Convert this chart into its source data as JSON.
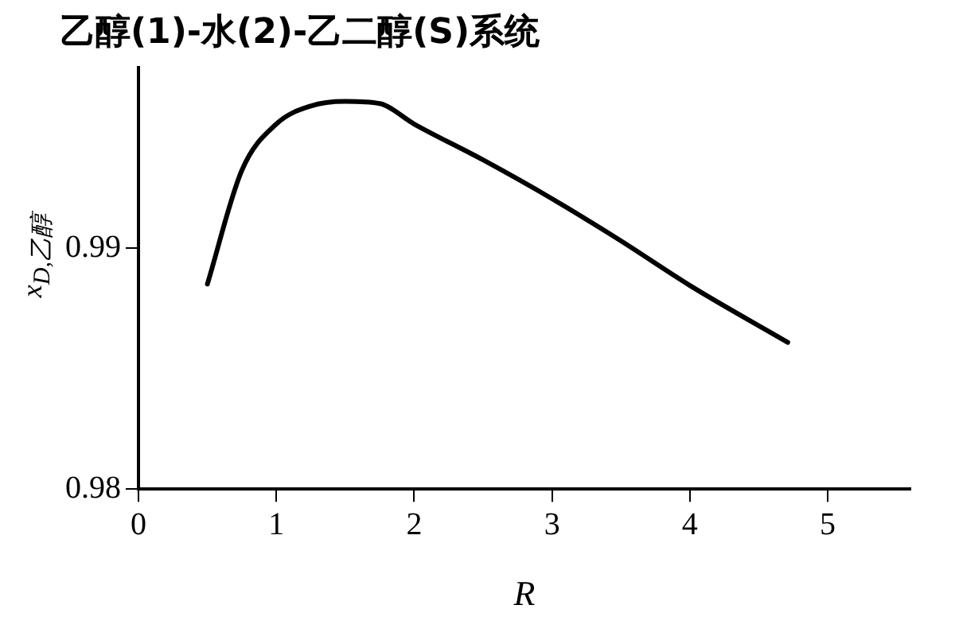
{
  "chart_data": {
    "type": "line",
    "title": "乙醇(1)-水(2)-乙二醇(S)系统",
    "xlabel": "R",
    "ylabel": "x$_{D,乙醇}$",
    "x": [
      0.5,
      0.75,
      1.0,
      1.25,
      1.5,
      1.75,
      2.0,
      2.5,
      3.0,
      3.5,
      4.0,
      4.71
    ],
    "series": [
      {
        "color": "#000000",
        "values": [
          0.98851,
          0.99323,
          0.99515,
          0.9959,
          0.99609,
          0.996,
          0.99515,
          0.99366,
          0.99205,
          0.9903,
          0.98845,
          0.98609
        ]
      }
    ],
    "xlim": [
      0,
      5.6
    ],
    "xticks": [
      0,
      1,
      2,
      3,
      4,
      5
    ],
    "ylim": [
      0.98,
      0.9975
    ],
    "yticks": [
      0.98,
      0.99
    ],
    "grid": false,
    "legend": false,
    "marker": "none",
    "line_style": "solid"
  }
}
